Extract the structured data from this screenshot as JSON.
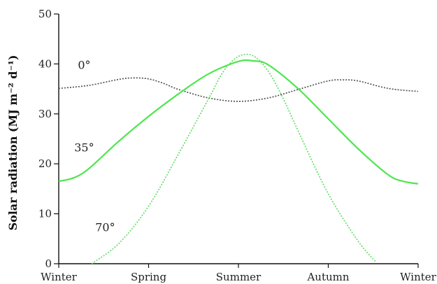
{
  "chart_data": {
    "type": "line",
    "ylabel": "Solar radiation (MJ m⁻² d⁻¹)",
    "xlabel": "",
    "title": "",
    "xlim": [
      0,
      12
    ],
    "ylim": [
      0,
      50
    ],
    "y_ticks": [
      0,
      10,
      20,
      30,
      40,
      50
    ],
    "x_ticks": [
      {
        "x": 0,
        "label": "Winter"
      },
      {
        "x": 3,
        "label": "Spring"
      },
      {
        "x": 6,
        "label": "Summer"
      },
      {
        "x": 9,
        "label": "Autumn"
      },
      {
        "x": 12,
        "label": "Winter"
      }
    ],
    "grid": false,
    "series": [
      {
        "name": "0°",
        "color": "#555555",
        "style": "dotted",
        "x": [
          0,
          1,
          2,
          2.5,
          3,
          3.5,
          4,
          5,
          6,
          7,
          8,
          9,
          9.5,
          10,
          11,
          12
        ],
        "y": [
          35.1,
          35.7,
          36.9,
          37.2,
          37.0,
          36.1,
          34.9,
          33.2,
          32.5,
          33.2,
          34.9,
          36.6,
          36.8,
          36.6,
          35.1,
          34.5
        ]
      },
      {
        "name": "35°",
        "color": "#4ee64e",
        "style": "solid",
        "x": [
          0,
          0.5,
          1,
          2,
          3,
          4,
          5,
          6,
          6.5,
          7,
          8,
          9,
          10,
          11,
          11.5,
          12
        ],
        "y": [
          16.5,
          17.2,
          19.0,
          24.5,
          29.5,
          34.0,
          38.0,
          40.5,
          40.6,
          39.8,
          35.0,
          29.0,
          23.0,
          17.8,
          16.5,
          16.0
        ]
      },
      {
        "name": "70°",
        "color": "#66dd66",
        "style": "dotted",
        "x": [
          1.1,
          2,
          3,
          4,
          5,
          5.5,
          6,
          6.5,
          7,
          7.5,
          8,
          9,
          10,
          10.6
        ],
        "y": [
          0,
          4.0,
          11.5,
          22.0,
          33.0,
          38.5,
          41.5,
          41.6,
          38.5,
          33.0,
          26.5,
          14.0,
          4.5,
          0.3
        ]
      }
    ],
    "annotations": [
      {
        "text": "0°",
        "x": 0.85,
        "y": 39.0
      },
      {
        "text": "35°",
        "x": 0.85,
        "y": 22.5
      },
      {
        "text": "70°",
        "x": 1.55,
        "y": 6.5
      }
    ]
  }
}
